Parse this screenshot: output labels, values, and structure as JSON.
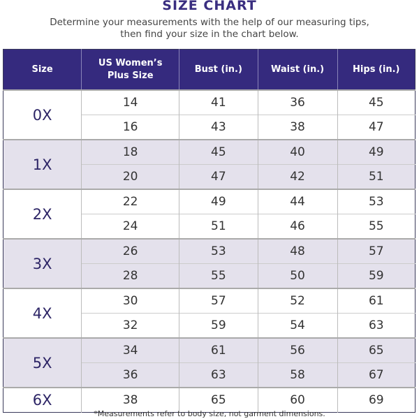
{
  "title": "SIZE CHART",
  "subtitle_line1": "Determine your measurements with the help of our measuring tips,",
  "subtitle_line2": "then find your size in the chart below.",
  "colors": {
    "header": "#352a7e",
    "shaded_row": "#e4e1ec",
    "size_text": "#2d2566"
  },
  "table": {
    "headers": [
      "Size",
      "US Women’s Plus Size",
      "Bust (in.)",
      "Waist (in.)",
      "Hips (in.)"
    ],
    "groups": [
      {
        "size": "0X",
        "rows": [
          [
            "14",
            "41",
            "36",
            "45"
          ],
          [
            "16",
            "43",
            "38",
            "47"
          ]
        ]
      },
      {
        "size": "1X",
        "rows": [
          [
            "18",
            "45",
            "40",
            "49"
          ],
          [
            "20",
            "47",
            "42",
            "51"
          ]
        ]
      },
      {
        "size": "2X",
        "rows": [
          [
            "22",
            "49",
            "44",
            "53"
          ],
          [
            "24",
            "51",
            "46",
            "55"
          ]
        ]
      },
      {
        "size": "3X",
        "rows": [
          [
            "26",
            "53",
            "48",
            "57"
          ],
          [
            "28",
            "55",
            "50",
            "59"
          ]
        ]
      },
      {
        "size": "4X",
        "rows": [
          [
            "30",
            "57",
            "52",
            "61"
          ],
          [
            "32",
            "59",
            "54",
            "63"
          ]
        ]
      },
      {
        "size": "5X",
        "rows": [
          [
            "34",
            "61",
            "56",
            "65"
          ],
          [
            "36",
            "63",
            "58",
            "67"
          ]
        ]
      },
      {
        "size": "6X",
        "rows": [
          [
            "38",
            "65",
            "60",
            "69"
          ]
        ]
      }
    ]
  },
  "footnote": "*Measurements refer to body size, not garment dimensions."
}
